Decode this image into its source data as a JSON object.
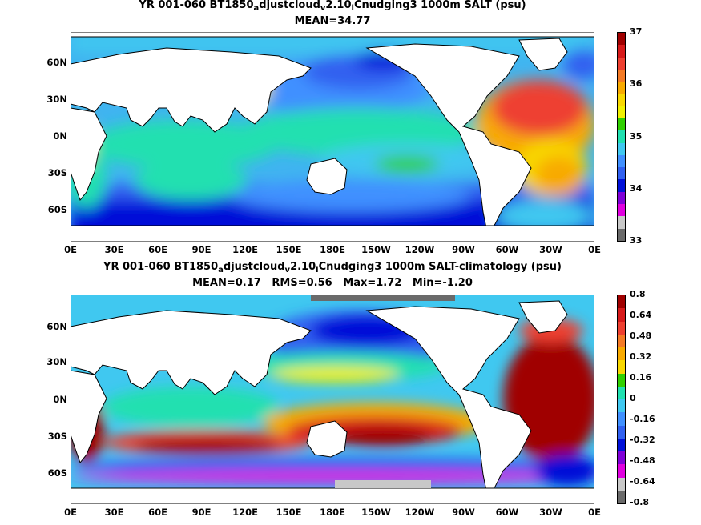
{
  "panel_top": {
    "title_pre": "YR 001-060 BT1850",
    "title_sub1": "a",
    "title_mid1": "djustcloud",
    "title_sub2": "v",
    "title_mid2": "2.10",
    "title_sub3": "l",
    "title_post": "Cnudging3 1000m SALT (psu)",
    "stats": "MEAN=34.77",
    "lat_labels": [
      "60N",
      "30N",
      "0N",
      "30S",
      "60S"
    ],
    "lon_labels": [
      "0E",
      "30E",
      "60E",
      "90E",
      "120E",
      "150E",
      "180E",
      "150W",
      "120W",
      "90W",
      "60W",
      "30W",
      "0E"
    ],
    "colorbar_labels": [
      "37",
      "36",
      "35",
      "34",
      "33"
    ],
    "colorbar_colors": [
      "#a00000",
      "#d71a1a",
      "#ee4030",
      "#f47a25",
      "#f8aa00",
      "#f8d700",
      "#f0f000",
      "#30d000",
      "#20e0b0",
      "#40c8f0",
      "#4090ff",
      "#3060f0",
      "#0010d8",
      "#8000d8",
      "#e000e0",
      "#c8c8c8",
      "#6a6a6a"
    ]
  },
  "panel_bottom": {
    "title_pre": "YR 001-060 BT1850",
    "title_sub1": "a",
    "title_mid1": "djustcloud",
    "title_sub2": "v",
    "title_mid2": "2.10",
    "title_sub3": "l",
    "title_post": "Cnudging3 1000m SALT-climatology (psu)",
    "stats": "MEAN=0.17   RMS=0.56   Max=1.72   Min=-1.20",
    "lat_labels": [
      "60N",
      "30N",
      "0N",
      "30S",
      "60S"
    ],
    "lon_labels": [
      "0E",
      "30E",
      "60E",
      "90E",
      "120E",
      "150E",
      "180E",
      "150W",
      "120W",
      "90W",
      "60W",
      "30W",
      "0E"
    ],
    "colorbar_labels": [
      "0.8",
      "0.64",
      "0.48",
      "0.32",
      "0.16",
      "0",
      "-0.16",
      "-0.32",
      "-0.48",
      "-0.64",
      "-0.8"
    ],
    "colorbar_colors": [
      "#a00000",
      "#d71a1a",
      "#ee4030",
      "#f47a25",
      "#f8aa00",
      "#f8d700",
      "#30d000",
      "#20e0b0",
      "#40c8f0",
      "#4090ff",
      "#3060f0",
      "#0010d8",
      "#8000d8",
      "#e000e0",
      "#c8c8c8",
      "#6a6a6a"
    ]
  }
}
